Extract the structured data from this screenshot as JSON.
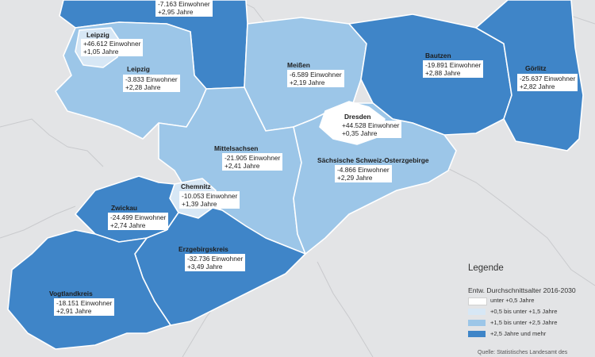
{
  "colors": {
    "class_0": "#ffffff",
    "class_1": "#d7e7f5",
    "class_2": "#9cc6e8",
    "class_3": "#3f85c8",
    "background": "#e3e4e6"
  },
  "regions": {
    "nordsachsen": {
      "name": "",
      "einwohner": "-7.163 Einwohner",
      "jahre": "+2,95 Jahre",
      "class": 3
    },
    "leipzig_stadt": {
      "name": "Leipzig",
      "einwohner": "+46.612 Einwohner",
      "jahre": "+1,05 Jahre",
      "class": 1
    },
    "leipzig_land": {
      "name": "Leipzig",
      "einwohner": "-3.833 Einwohner",
      "jahre": "+2,28 Jahre",
      "class": 2
    },
    "meissen": {
      "name": "Meißen",
      "einwohner": "-6.589 Einwohner",
      "jahre": "+2,19 Jahre",
      "class": 2
    },
    "bautzen": {
      "name": "Bautzen",
      "einwohner": "-19.891 Einwohner",
      "jahre": "+2,88 Jahre",
      "class": 3
    },
    "goerlitz": {
      "name": "Görlitz",
      "einwohner": "-25.637 Einwohner",
      "jahre": "+2,82 Jahre",
      "class": 3
    },
    "dresden": {
      "name": "Dresden",
      "einwohner": "+44.528 Einwohner",
      "jahre": "+0,35 Jahre",
      "class": 0
    },
    "mittelsachsen": {
      "name": "Mittelsachsen",
      "einwohner": "-21.905 Einwohner",
      "jahre": "+2,41 Jahre",
      "class": 2
    },
    "saechsische_schweiz": {
      "name": "Sächsische Schweiz-Osterzgebirge",
      "einwohner": "-4.866 Einwohner",
      "jahre": "+2,29 Jahre",
      "class": 2
    },
    "chemnitz": {
      "name": "Chemnitz",
      "einwohner": "-10.053 Einwohner",
      "jahre": "+1,39 Jahre",
      "class": 1
    },
    "zwickau": {
      "name": "Zwickau",
      "einwohner": "-24.499 Einwohner",
      "jahre": "+2,74 Jahre",
      "class": 3
    },
    "erzgebirgskreis": {
      "name": "Erzgebirgskreis",
      "einwohner": "-32.736 Einwohner",
      "jahre": "+3,49 Jahre",
      "class": 3
    },
    "vogtlandkreis": {
      "name": "Vogtlandkreis",
      "einwohner": "-18.151 Einwohner",
      "jahre": "+2,91 Jahre",
      "class": 3
    }
  },
  "legend": {
    "title": "Legende",
    "subtitle": "Entw. Durchschnittsalter 2016-2030",
    "items": [
      {
        "label": "unter +0,5 Jahre",
        "class": 0
      },
      {
        "label": "+0,5 bis unter +1,5 Jahre",
        "class": 1
      },
      {
        "label": "+1,5 bis unter +2,5 Jahre",
        "class": 2
      },
      {
        "label": "+2,5 Jahre und mehr",
        "class": 3
      }
    ]
  },
  "source": "Quelle: Statistisches Landesamt des"
}
